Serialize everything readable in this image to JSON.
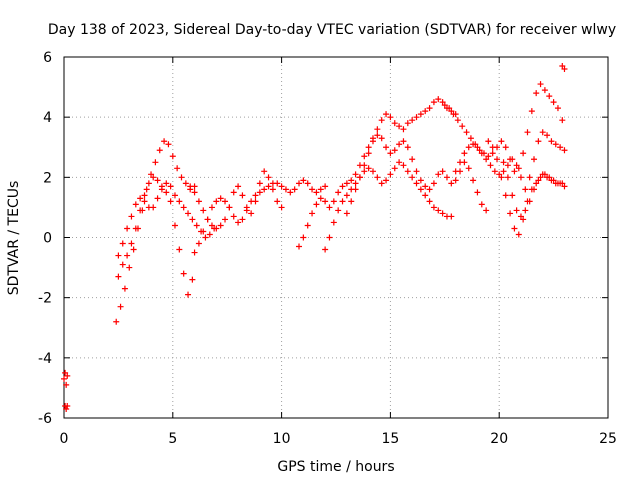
{
  "chart_data": {
    "type": "scatter",
    "title": "Day 138 of 2023, Sidereal Day-to-day VTEC variation (SDTVAR) for receiver wlwy",
    "xlabel": "GPS time / hours",
    "ylabel": "SDTVAR / TECUs",
    "xlim": [
      0,
      25
    ],
    "ylim": [
      -6,
      6
    ],
    "xticks": [
      0,
      5,
      10,
      15,
      20,
      25
    ],
    "yticks": [
      -6,
      -4,
      -2,
      0,
      2,
      4,
      6
    ],
    "xtick_labels": [
      "0",
      "5",
      "10",
      "15",
      "20",
      "25"
    ],
    "ytick_labels": [
      "-6",
      "-4",
      "-2",
      "0",
      "2",
      "4",
      "6"
    ],
    "grid": true,
    "marker": "+",
    "color": "#ff0000",
    "series": [
      {
        "name": "start",
        "x": [
          0.0,
          0.05,
          0.1,
          0.15,
          0.05,
          0.1,
          0.15
        ],
        "y": [
          -4.7,
          -4.5,
          -4.9,
          -4.6,
          -5.6,
          -5.7,
          -5.6
        ]
      },
      {
        "name": "s1",
        "x": [
          2.4,
          2.6,
          2.8,
          3.0,
          3.2,
          3.4,
          3.6,
          3.8,
          4.0,
          4.2,
          4.4,
          4.6,
          4.8,
          5.0,
          5.2,
          5.4,
          5.6,
          5.8,
          6.0
        ],
        "y": [
          -2.8,
          -2.3,
          -1.7,
          -1.0,
          -0.4,
          0.3,
          0.9,
          1.6,
          2.1,
          2.5,
          2.9,
          3.2,
          3.1,
          2.7,
          2.3,
          2.0,
          1.8,
          1.6,
          1.7
        ]
      },
      {
        "name": "s2",
        "x": [
          2.5,
          2.7,
          2.9,
          3.1,
          3.3,
          3.5,
          3.7,
          3.9,
          4.1,
          4.3,
          4.5,
          4.7,
          4.9,
          5.1,
          5.3,
          5.5,
          5.7,
          5.9
        ],
        "y": [
          -1.3,
          -0.9,
          -0.6,
          -0.2,
          0.3,
          0.9,
          1.4,
          1.8,
          2.0,
          1.9,
          1.7,
          1.5,
          1.2,
          0.4,
          -0.4,
          -1.2,
          -1.9,
          -1.4
        ]
      },
      {
        "name": "s3",
        "x": [
          2.5,
          2.7,
          2.9,
          3.1,
          3.3,
          3.5,
          3.7,
          3.9,
          4.1,
          4.3,
          4.5,
          4.7,
          4.9,
          5.1,
          5.3,
          5.5,
          5.7,
          5.9,
          6.1,
          6.3,
          6.5,
          6.7,
          6.9
        ],
        "y": [
          -0.6,
          -0.2,
          0.3,
          0.7,
          1.1,
          1.3,
          1.2,
          1.0,
          1.0,
          1.3,
          1.6,
          1.8,
          1.7,
          1.4,
          1.2,
          1.0,
          0.8,
          0.6,
          0.4,
          0.2,
          0.0,
          0.1,
          0.3
        ]
      },
      {
        "name": "s4",
        "x": [
          5.8,
          6.0,
          6.2,
          6.4,
          6.6,
          6.8,
          7.0,
          7.2,
          7.4,
          7.6,
          7.8,
          8.0,
          8.2,
          8.4,
          8.6,
          8.8,
          9.0,
          9.2,
          9.4,
          9.6,
          9.8,
          10.0
        ],
        "y": [
          1.7,
          1.5,
          1.2,
          0.9,
          0.6,
          0.4,
          0.3,
          0.4,
          0.6,
          1.0,
          1.5,
          1.7,
          1.4,
          1.0,
          0.8,
          1.2,
          1.8,
          2.2,
          2.0,
          1.6,
          1.2,
          1.0
        ]
      },
      {
        "name": "s5",
        "x": [
          6.0,
          6.2,
          6.4,
          6.6,
          6.8,
          7.0,
          7.2,
          7.4,
          7.6,
          7.8,
          8.0,
          8.2,
          8.4,
          8.6,
          8.8,
          9.0,
          9.2,
          9.4,
          9.6,
          9.8,
          10.0,
          10.2,
          10.4,
          10.6,
          10.8,
          11.0,
          11.2,
          11.4,
          11.6,
          11.8,
          12.0
        ],
        "y": [
          -0.5,
          -0.2,
          0.2,
          0.6,
          1.0,
          1.2,
          1.3,
          1.2,
          1.0,
          0.7,
          0.5,
          0.6,
          0.9,
          1.2,
          1.4,
          1.5,
          1.6,
          1.7,
          1.8,
          1.8,
          1.7,
          1.6,
          1.5,
          1.6,
          1.8,
          1.9,
          1.8,
          1.6,
          1.5,
          1.6,
          1.7
        ]
      },
      {
        "name": "s6",
        "x": [
          10.8,
          11.0,
          11.2,
          11.4,
          11.6,
          11.8,
          12.0,
          12.2,
          12.4,
          12.6,
          12.8,
          13.0,
          13.2,
          13.4,
          13.6,
          13.8,
          14.0,
          14.2,
          14.4,
          14.6,
          14.8,
          15.0,
          15.2,
          15.4,
          15.6,
          15.8,
          16.0,
          16.2,
          16.4,
          16.6,
          16.8,
          17.0,
          17.2,
          17.4,
          17.6,
          17.8,
          18.0
        ],
        "y": [
          -0.3,
          0.0,
          0.4,
          0.8,
          1.1,
          1.3,
          1.2,
          1.0,
          1.2,
          1.5,
          1.7,
          1.8,
          1.9,
          2.1,
          2.4,
          2.7,
          3.0,
          3.3,
          3.6,
          3.9,
          4.1,
          4.0,
          3.8,
          3.7,
          3.6,
          3.8,
          3.9,
          4.0,
          4.1,
          4.2,
          4.3,
          4.5,
          4.6,
          4.5,
          4.3,
          4.2,
          4.1
        ]
      },
      {
        "name": "s7",
        "x": [
          12.0,
          12.2,
          12.4,
          12.6,
          12.8,
          13.0,
          13.2,
          13.4,
          13.6,
          13.8,
          14.0,
          14.2,
          14.4,
          14.6,
          14.8,
          15.0,
          15.2,
          15.4,
          15.6,
          15.8,
          16.0,
          16.2,
          16.4,
          16.6,
          16.8,
          17.0,
          17.2,
          17.4,
          17.6,
          17.8
        ],
        "y": [
          -0.4,
          0.0,
          0.5,
          0.9,
          1.2,
          1.4,
          1.6,
          1.8,
          2.0,
          2.2,
          2.3,
          2.2,
          2.0,
          1.8,
          1.9,
          2.1,
          2.3,
          2.5,
          2.4,
          2.2,
          2.0,
          1.8,
          1.6,
          1.4,
          1.2,
          1.0,
          0.9,
          0.8,
          0.7,
          0.7
        ]
      },
      {
        "name": "s8",
        "x": [
          13.0,
          13.2,
          13.4,
          13.6,
          13.8,
          14.0,
          14.2,
          14.4,
          14.6,
          14.8,
          15.0,
          15.2,
          15.4,
          15.6,
          15.8,
          16.0,
          16.2,
          16.4,
          16.6,
          16.8,
          17.0,
          17.2,
          17.4,
          17.6,
          17.8,
          18.0,
          18.2,
          18.4,
          18.6,
          18.8,
          19.0,
          19.2,
          19.4
        ],
        "y": [
          0.8,
          1.2,
          1.6,
          2.0,
          2.4,
          2.8,
          3.2,
          3.4,
          3.3,
          3.0,
          2.8,
          2.9,
          3.1,
          3.2,
          3.0,
          2.6,
          2.2,
          1.9,
          1.7,
          1.6,
          1.8,
          2.1,
          2.2,
          2.0,
          1.8,
          1.9,
          2.2,
          2.5,
          2.3,
          1.9,
          1.5,
          1.1,
          0.9
        ]
      },
      {
        "name": "s9",
        "x": [
          17.5,
          17.7,
          17.9,
          18.1,
          18.3,
          18.5,
          18.7,
          18.9,
          19.1,
          19.3,
          19.5,
          19.7,
          19.9,
          20.1,
          20.3,
          20.5,
          20.7,
          20.9,
          21.1,
          21.3,
          21.5,
          21.7,
          21.9,
          22.1,
          22.3,
          22.5,
          22.7,
          22.9
        ],
        "y": [
          4.4,
          4.3,
          4.1,
          3.9,
          3.7,
          3.5,
          3.3,
          3.1,
          2.9,
          2.8,
          2.7,
          2.8,
          3.0,
          3.2,
          3.0,
          2.6,
          2.2,
          2.3,
          2.8,
          3.5,
          4.2,
          4.8,
          5.1,
          4.9,
          4.7,
          4.5,
          4.3,
          3.9
        ]
      },
      {
        "name": "s10",
        "x": [
          18.0,
          18.2,
          18.4,
          18.6,
          18.8,
          19.0,
          19.2,
          19.4,
          19.6,
          19.8,
          20.0,
          20.2,
          20.4,
          20.6,
          20.8,
          21.0,
          21.2,
          21.4,
          21.6,
          21.8,
          22.0,
          22.2,
          22.4,
          22.6,
          22.8,
          23.0
        ],
        "y": [
          2.2,
          2.5,
          2.8,
          3.0,
          3.1,
          3.0,
          2.8,
          2.6,
          2.4,
          2.2,
          2.1,
          2.2,
          2.4,
          2.6,
          2.4,
          2.0,
          1.6,
          2.0,
          2.6,
          3.2,
          3.5,
          3.4,
          3.2,
          3.1,
          3.0,
          2.9
        ]
      },
      {
        "name": "s11",
        "x": [
          19.5,
          19.7,
          19.9,
          20.1,
          20.3,
          20.5,
          20.7,
          20.9,
          21.1,
          21.3,
          21.5,
          21.7,
          21.9,
          22.1,
          22.3,
          22.5,
          22.7,
          22.9
        ],
        "y": [
          3.2,
          3.0,
          2.6,
          2.0,
          1.4,
          0.8,
          0.3,
          0.1,
          0.6,
          1.2,
          1.6,
          1.8,
          2.0,
          2.1,
          2.0,
          1.9,
          1.8,
          1.8
        ]
      },
      {
        "name": "s12",
        "x": [
          20.2,
          20.4,
          20.6,
          20.8,
          21.0,
          21.2,
          21.4,
          21.6,
          21.8,
          22.0,
          22.2,
          22.4,
          22.6,
          22.8,
          23.0
        ],
        "y": [
          2.5,
          2.0,
          1.4,
          0.9,
          0.7,
          0.9,
          1.2,
          1.6,
          1.9,
          2.1,
          2.0,
          1.9,
          1.8,
          1.8,
          1.7
        ]
      },
      {
        "name": "end",
        "x": [
          22.9,
          23.0
        ],
        "y": [
          5.7,
          5.6
        ]
      }
    ]
  }
}
